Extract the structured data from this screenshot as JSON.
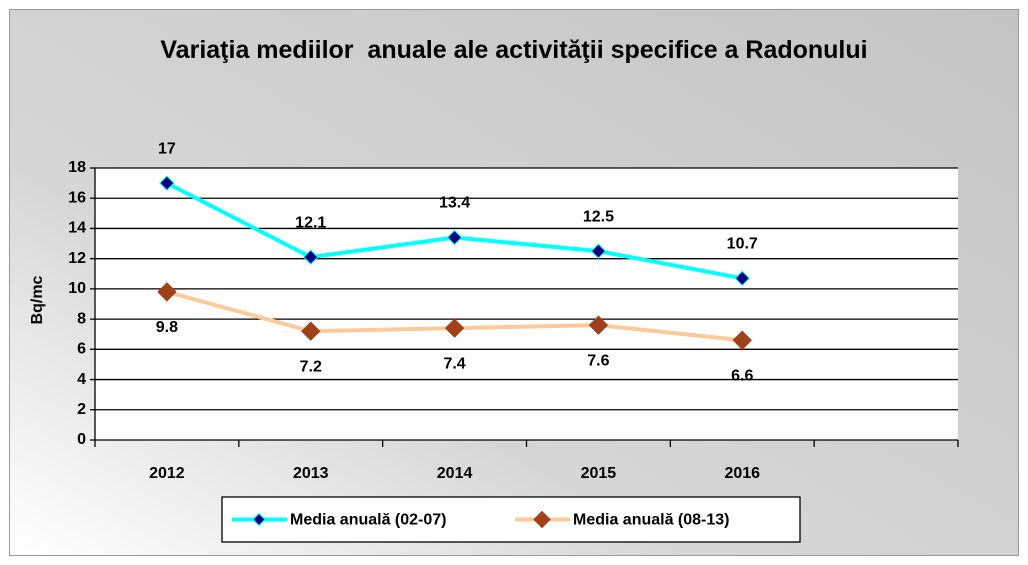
{
  "chart_data": {
    "type": "line",
    "title": "Variaţia mediilor  anuale ale activităţii specifice a Radonului",
    "y_label": "Bq/mc",
    "categories": [
      "2012",
      "2013",
      "2014",
      "2015",
      "2016",
      null
    ],
    "series": [
      {
        "name": "Media anuală (02-07)",
        "color": "#00ffff",
        "marker_color": "#000080",
        "values": [
          17,
          12.1,
          13.4,
          12.5,
          10.7,
          null
        ]
      },
      {
        "name": "Media anuală (08-13)",
        "color": "#fdc999",
        "marker_color": "#a0411b",
        "values": [
          9.8,
          7.2,
          7.4,
          7.6,
          6.6,
          null
        ]
      }
    ],
    "ylim": [
      0,
      18
    ],
    "yticks": [
      0,
      2,
      4,
      6,
      8,
      10,
      12,
      14,
      16,
      18
    ],
    "grid": true,
    "legend": "bottom"
  }
}
